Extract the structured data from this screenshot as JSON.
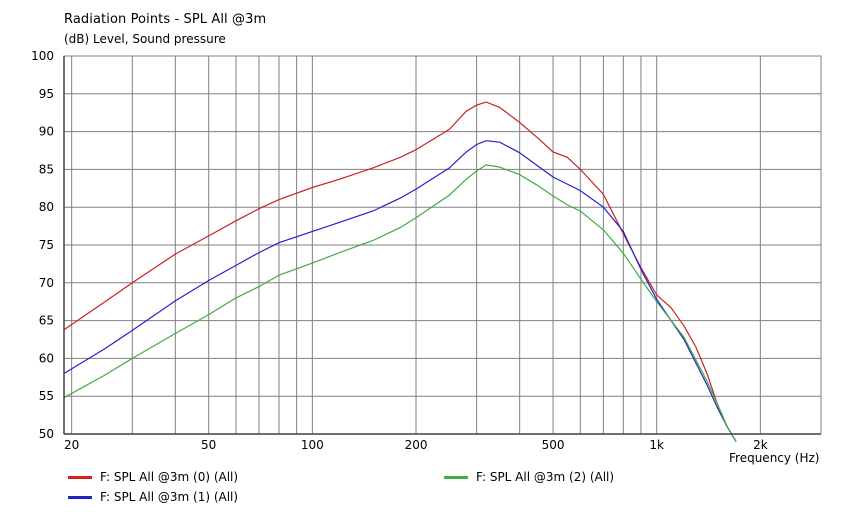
{
  "window": {
    "title": "Radiation Points - SPL All @3m",
    "subtitle": "(dB)  Level, Sound pressure"
  },
  "chart_data": {
    "type": "line",
    "title": "Radiation Points - SPL All @3m",
    "ylabel": "(dB)  Level, Sound pressure",
    "xlabel": "Frequency  (Hz)",
    "xscale": "log",
    "xlim": [
      19,
      3000
    ],
    "ylim": [
      50,
      100
    ],
    "yticks": [
      50,
      55,
      60,
      65,
      70,
      75,
      80,
      85,
      90,
      95,
      100
    ],
    "xtick_labels": [
      {
        "value": 20,
        "label": "20"
      },
      {
        "value": 50,
        "label": "50"
      },
      {
        "value": 100,
        "label": "100"
      },
      {
        "value": 200,
        "label": "200"
      },
      {
        "value": 500,
        "label": "500"
      },
      {
        "value": 1000,
        "label": "1k"
      },
      {
        "value": 2000,
        "label": "2k"
      }
    ],
    "grid": true,
    "legend_position": "bottom",
    "series": [
      {
        "name": "F: SPL All @3m (0)  (All)",
        "color": "#cc2222",
        "points": [
          [
            19,
            63.8
          ],
          [
            25,
            67.5
          ],
          [
            30,
            70
          ],
          [
            40,
            73.8
          ],
          [
            50,
            76.2
          ],
          [
            60,
            78.2
          ],
          [
            70,
            79.8
          ],
          [
            80,
            81
          ],
          [
            100,
            82.6
          ],
          [
            120,
            83.7
          ],
          [
            150,
            85.2
          ],
          [
            180,
            86.6
          ],
          [
            200,
            87.6
          ],
          [
            250,
            90.3
          ],
          [
            280,
            92.7
          ],
          [
            300,
            93.5
          ],
          [
            320,
            93.9
          ],
          [
            350,
            93.2
          ],
          [
            400,
            91.2
          ],
          [
            450,
            89.2
          ],
          [
            500,
            87.3
          ],
          [
            550,
            86.6
          ],
          [
            600,
            85
          ],
          [
            700,
            81.7
          ],
          [
            800,
            76.5
          ],
          [
            900,
            72
          ],
          [
            1000,
            68.4
          ],
          [
            1100,
            66.7
          ],
          [
            1200,
            64.3
          ],
          [
            1300,
            61.5
          ],
          [
            1400,
            58
          ],
          [
            1500,
            54
          ],
          [
            1600,
            51
          ],
          [
            1700,
            49
          ]
        ]
      },
      {
        "name": "F: SPL All @3m (1)  (All)",
        "color": "#2222cc",
        "points": [
          [
            19,
            58
          ],
          [
            25,
            61.3
          ],
          [
            30,
            63.7
          ],
          [
            40,
            67.6
          ],
          [
            50,
            70.3
          ],
          [
            60,
            72.3
          ],
          [
            70,
            74
          ],
          [
            80,
            75.3
          ],
          [
            100,
            76.8
          ],
          [
            120,
            78
          ],
          [
            150,
            79.5
          ],
          [
            180,
            81.2
          ],
          [
            200,
            82.4
          ],
          [
            250,
            85.2
          ],
          [
            280,
            87.3
          ],
          [
            300,
            88.3
          ],
          [
            320,
            88.8
          ],
          [
            350,
            88.6
          ],
          [
            400,
            87.2
          ],
          [
            450,
            85.5
          ],
          [
            500,
            84
          ],
          [
            600,
            82.2
          ],
          [
            700,
            80
          ],
          [
            800,
            76.8
          ],
          [
            900,
            71.8
          ],
          [
            1000,
            67.8
          ],
          [
            1200,
            62.5
          ],
          [
            1400,
            56.5
          ],
          [
            1500,
            53.5
          ],
          [
            1600,
            51
          ],
          [
            1700,
            49
          ]
        ]
      },
      {
        "name": "F: SPL All @3m (2)  (All)",
        "color": "#44aa44",
        "points": [
          [
            19,
            54.8
          ],
          [
            25,
            57.8
          ],
          [
            30,
            60
          ],
          [
            40,
            63.3
          ],
          [
            50,
            65.8
          ],
          [
            60,
            68
          ],
          [
            70,
            69.5
          ],
          [
            80,
            71
          ],
          [
            100,
            72.6
          ],
          [
            120,
            74
          ],
          [
            150,
            75.6
          ],
          [
            180,
            77.3
          ],
          [
            200,
            78.6
          ],
          [
            250,
            81.6
          ],
          [
            280,
            83.7
          ],
          [
            300,
            84.8
          ],
          [
            320,
            85.6
          ],
          [
            350,
            85.3
          ],
          [
            400,
            84.3
          ],
          [
            450,
            82.9
          ],
          [
            500,
            81.5
          ],
          [
            550,
            80.3
          ],
          [
            600,
            79.5
          ],
          [
            700,
            77
          ],
          [
            800,
            73.9
          ],
          [
            900,
            70.5
          ],
          [
            1000,
            67.5
          ],
          [
            1200,
            62.8
          ],
          [
            1400,
            57
          ],
          [
            1500,
            54
          ],
          [
            1600,
            51
          ],
          [
            1700,
            49
          ]
        ]
      }
    ]
  }
}
